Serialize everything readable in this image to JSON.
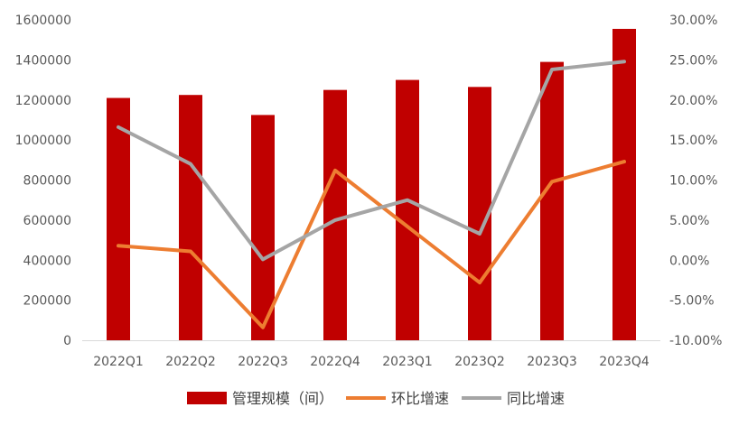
{
  "chart_data": {
    "type": "bar",
    "categories": [
      "2022Q1",
      "2022Q2",
      "2022Q3",
      "2022Q4",
      "2023Q1",
      "2023Q2",
      "2023Q3",
      "2023Q4"
    ],
    "series": [
      {
        "name": "管理规模（间）",
        "type": "bar",
        "axis": "left",
        "color": "#c00000",
        "values": [
          1210000,
          1225000,
          1125000,
          1250000,
          1300000,
          1265000,
          1390000,
          1555000
        ]
      },
      {
        "name": "环比增速",
        "type": "line",
        "axis": "right",
        "color": "#ed7d31",
        "values": [
          1.8,
          1.1,
          -8.4,
          11.2,
          4.2,
          -2.8,
          9.8,
          12.3
        ]
      },
      {
        "name": "同比增速",
        "type": "line",
        "axis": "right",
        "color": "#a5a5a5",
        "values": [
          16.6,
          12.0,
          0.1,
          5.0,
          7.5,
          3.3,
          23.8,
          24.8
        ]
      }
    ],
    "y_left": {
      "lim": [
        0,
        1600000
      ],
      "ticks": [
        "0",
        "200000",
        "400000",
        "600000",
        "800000",
        "1000000",
        "1200000",
        "1400000",
        "1600000"
      ]
    },
    "y_right": {
      "lim": [
        -10,
        30
      ],
      "ticks": [
        "-10.00%",
        "-5.00%",
        "0.00%",
        "5.00%",
        "10.00%",
        "15.00%",
        "20.00%",
        "25.00%",
        "30.00%"
      ]
    },
    "grid": false,
    "legend_position": "bottom"
  }
}
